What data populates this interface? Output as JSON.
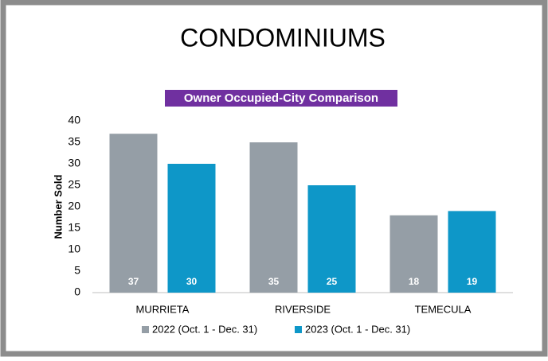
{
  "chart_data": {
    "type": "bar",
    "title": "CONDOMINIUMS",
    "subtitle": "Owner Occupied-City Comparison",
    "y_label": "Number Sold",
    "categories": [
      "MURRIETA",
      "RIVERSIDE",
      "TEMECULA"
    ],
    "series": [
      {
        "name": "2022 (Oct. 1 - Dec. 31)",
        "color": "#959ea6",
        "values": [
          37,
          35,
          18
        ]
      },
      {
        "name": "2023 (Oct. 1 - Dec. 31)",
        "color": "#0e97c8",
        "values": [
          30,
          25,
          19
        ]
      }
    ],
    "ylim": [
      0,
      40
    ],
    "yticks": [
      0,
      5,
      10,
      15,
      20,
      25,
      30,
      35,
      40
    ],
    "grid": false,
    "legend": "bottom"
  }
}
